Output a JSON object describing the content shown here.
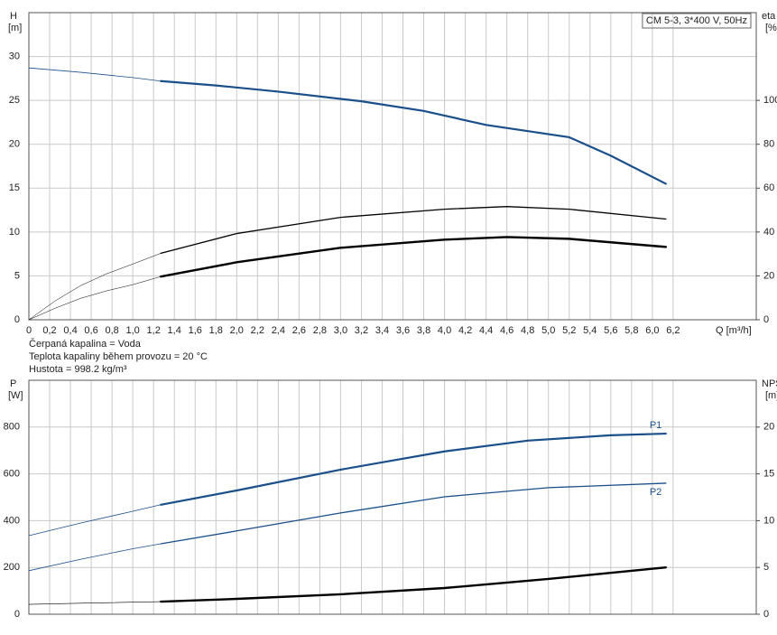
{
  "chart_data": [
    {
      "type": "line",
      "title": "CM 5-3, 3*400 V, 50Hz",
      "ylabel": "H",
      "yunit": "[m]",
      "y2label": "eta",
      "y2unit": "[%]",
      "xlabel": "Q [m³/h]",
      "annotations": [
        "Čerpaná kapalina = Voda",
        "Teplota kapaliny během provozu = 20 °C",
        "Hustota = 998.2 kg/m³"
      ],
      "xlim": [
        0,
        7
      ],
      "ylim": [
        0,
        35
      ],
      "y2lim": [
        0,
        140
      ],
      "grid": true,
      "xtick_labels": true,
      "xticks": [
        0,
        {
          "value": 0.2,
          "label": "0,2"
        },
        {
          "value": 0.4,
          "label": "0,4"
        },
        {
          "value": 0.6,
          "label": "0,6"
        },
        {
          "value": 0.8,
          "label": "0,8"
        },
        {
          "value": 1.0,
          "label": "1,0"
        },
        {
          "value": 1.2,
          "label": "1,2"
        },
        {
          "value": 1.4,
          "label": "1,4"
        },
        {
          "value": 1.6,
          "label": "1,6"
        },
        {
          "value": 1.8,
          "label": "1,8"
        },
        {
          "value": 2.0,
          "label": "2,0"
        },
        {
          "value": 2.2,
          "label": "2,2"
        },
        {
          "value": 2.4,
          "label": "2,4"
        },
        {
          "value": 2.6,
          "label": "2,6"
        },
        {
          "value": 2.8,
          "label": "2,8"
        },
        {
          "value": 3.0,
          "label": "3,0"
        },
        {
          "value": 3.2,
          "label": "3,2"
        },
        {
          "value": 3.4,
          "label": "3,4"
        },
        {
          "value": 3.6,
          "label": "3,6"
        },
        {
          "value": 3.8,
          "label": "3,8"
        },
        {
          "value": 4.0,
          "label": "4,0"
        },
        {
          "value": 4.2,
          "label": "4,2"
        },
        {
          "value": 4.4,
          "label": "4,4"
        },
        {
          "value": 4.6,
          "label": "4,6"
        },
        {
          "value": 4.8,
          "label": "4,8"
        },
        {
          "value": 5.0,
          "label": "5,0"
        },
        {
          "value": 5.2,
          "label": "5,2"
        },
        {
          "value": 5.4,
          "label": "5,4"
        },
        {
          "value": 5.6,
          "label": "5,6"
        },
        {
          "value": 5.8,
          "label": "5,8"
        },
        {
          "value": 6.0,
          "label": "6,0"
        },
        {
          "value": 6.2,
          "label": "6,2"
        }
      ],
      "yticks": [
        0,
        5,
        10,
        15,
        20,
        25,
        30
      ],
      "y2ticks": [
        0,
        20,
        40,
        60,
        80,
        100
      ],
      "series": [
        {
          "color": "#1b4f8a",
          "width": 0.8,
          "x": [
            0,
            0.5,
            1.0,
            1.27
          ],
          "values": [
            28.7,
            28.2,
            27.6,
            27.2
          ]
        },
        {
          "color": "#1b4f8a",
          "width": 2.2,
          "x": [
            1.27,
            1.8,
            2.4,
            3.2,
            3.8,
            4.4,
            5.2,
            5.6,
            6.13
          ],
          "values": [
            27.2,
            26.7,
            26.0,
            24.9,
            23.8,
            22.2,
            20.8,
            18.7,
            15.5
          ]
        },
        {
          "color": "#000000",
          "width": 0.5,
          "axis": "y2",
          "x": [
            0,
            0.25,
            0.5,
            0.75,
            1.0,
            1.27
          ],
          "values": [
            0,
            8.5,
            15.6,
            21,
            25.4,
            30.3
          ]
        },
        {
          "color": "#000000",
          "width": 1.3,
          "axis": "y2",
          "x": [
            1.27,
            2,
            3,
            4,
            4.6,
            5.2,
            6.13
          ],
          "values": [
            30.3,
            39.3,
            46.7,
            50.4,
            51.6,
            50.4,
            45.9
          ]
        },
        {
          "color": "#000000",
          "width": 0.5,
          "axis": "y2",
          "x": [
            0,
            0.25,
            0.5,
            0.75,
            1.0,
            1.27
          ],
          "values": [
            0,
            5.2,
            9.8,
            13.2,
            16,
            19.7
          ]
        },
        {
          "color": "#000000",
          "width": 2.4,
          "axis": "y2",
          "x": [
            1.27,
            2,
            3,
            4,
            4.6,
            5.2,
            6.13
          ],
          "values": [
            19.7,
            26.2,
            32.8,
            36.5,
            37.7,
            36.9,
            33.2
          ]
        }
      ]
    },
    {
      "type": "line",
      "ylabel": "P",
      "yunit": "[W]",
      "y2label": "NPSH",
      "y2unit": "[m]",
      "xlim": [
        0,
        7
      ],
      "ylim": [
        0,
        1000
      ],
      "y2lim": [
        0,
        25
      ],
      "grid": true,
      "xtick_labels": false,
      "xticks": [
        0,
        0.2,
        0.4,
        0.6,
        0.8,
        1.0,
        1.2,
        1.4,
        1.6,
        1.8,
        2.0,
        2.2,
        2.4,
        2.6,
        2.8,
        3.0,
        3.2,
        3.4,
        3.6,
        3.8,
        4.0,
        4.2,
        4.4,
        4.6,
        4.8,
        5.0,
        5.2,
        5.4,
        5.6,
        5.8,
        6.0,
        6.2
      ],
      "yticks": [
        0,
        200,
        400,
        600,
        800
      ],
      "y2ticks": [
        0,
        5,
        10,
        15,
        20
      ],
      "series": [
        {
          "color": "#1b4f8a",
          "width": 0.8,
          "x": [
            0,
            0.5,
            1.0,
            1.27
          ],
          "values": [
            336,
            390,
            440,
            468
          ]
        },
        {
          "name": "P1",
          "label_pos": "above",
          "color": "#1b4f8a",
          "width": 2.2,
          "x": [
            1.27,
            2,
            3,
            4,
            4.8,
            5.6,
            6.13
          ],
          "values": [
            468,
            529,
            618,
            696,
            742,
            765,
            772
          ]
        },
        {
          "color": "#1b4f8a",
          "width": 0.8,
          "x": [
            0,
            0.5,
            1.0,
            1.27
          ],
          "values": [
            186,
            235,
            280,
            301
          ]
        },
        {
          "name": "P2",
          "label_pos": "below",
          "color": "#1b4f8a",
          "width": 1.3,
          "x": [
            1.27,
            2,
            3,
            4,
            5,
            6.13
          ],
          "values": [
            301,
            356,
            433,
            502,
            541,
            560
          ]
        },
        {
          "color": "#000000",
          "width": 0.6,
          "axis": "y2",
          "x": [
            0,
            0.6,
            1.27
          ],
          "values": [
            1.06,
            1.2,
            1.35
          ]
        },
        {
          "color": "#000000",
          "width": 2.4,
          "axis": "y2",
          "x": [
            1.27,
            2,
            3,
            4,
            5,
            6.13
          ],
          "values": [
            1.35,
            1.64,
            2.13,
            2.8,
            3.77,
            5.0
          ]
        }
      ]
    }
  ]
}
